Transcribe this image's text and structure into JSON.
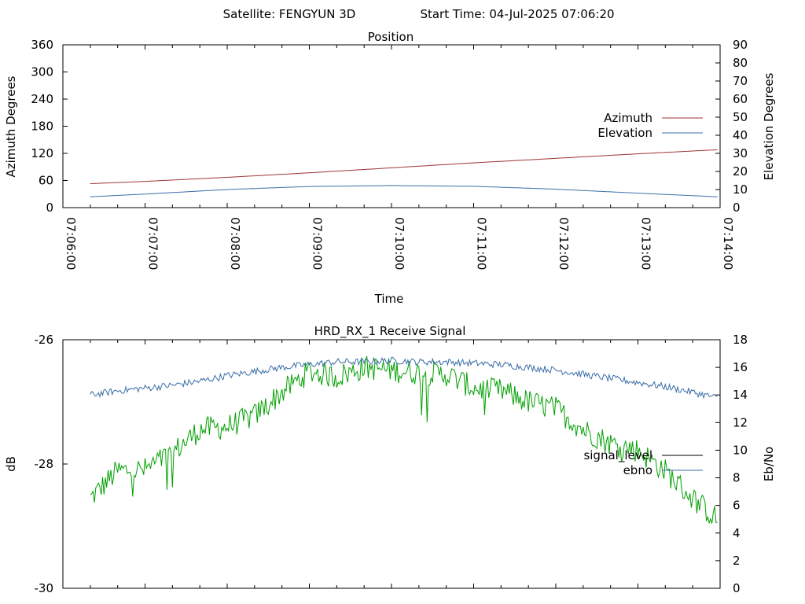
{
  "header": {
    "satellite": "Satellite: FENGYUN 3D",
    "start_time": "Start Time: 04-Jul-2025 07:06:20"
  },
  "chart_data": [
    {
      "type": "line",
      "title": "Position",
      "xlabel": "Time",
      "ylabel": "Azimuth Degrees",
      "y2label": "Elevation Degrees",
      "x_range": [
        "07:06:00",
        "07:14:00"
      ],
      "x_tick_labels": [
        "07:06:00",
        "07:07:00",
        "07:08:00",
        "07:09:00",
        "07:10:00",
        "07:11:00",
        "07:12:00",
        "07:13:00",
        "07:14:00"
      ],
      "ylim": [
        0,
        360
      ],
      "y_ticks": [
        0,
        60,
        120,
        180,
        240,
        300,
        360
      ],
      "y2lim": [
        0,
        90
      ],
      "y2_ticks": [
        0,
        10,
        20,
        30,
        40,
        50,
        60,
        70,
        80,
        90
      ],
      "legend_position": "right",
      "series": [
        {
          "name": "Azimuth",
          "axis": "y1",
          "color": "#a03232",
          "x": [
            "07:06:20",
            "07:07:00",
            "07:08:00",
            "07:09:00",
            "07:10:00",
            "07:11:00",
            "07:12:00",
            "07:13:00",
            "07:13:58"
          ],
          "values": [
            53,
            58,
            67,
            77,
            88,
            99,
            109,
            119,
            128
          ]
        },
        {
          "name": "Elevation",
          "axis": "y2",
          "color": "#3a6da8",
          "x": [
            "07:06:20",
            "07:07:00",
            "07:08:00",
            "07:09:00",
            "07:10:00",
            "07:11:00",
            "07:12:00",
            "07:13:00",
            "07:13:58"
          ],
          "values": [
            6,
            7.5,
            10,
            11.7,
            12.2,
            11.8,
            10.2,
            8,
            6
          ]
        }
      ]
    },
    {
      "type": "line",
      "title": "HRD_RX_1 Receive Signal",
      "ylabel": "dB",
      "y2label": "Eb/No",
      "x_range": [
        "07:06:00",
        "07:14:00"
      ],
      "ylim": [
        -30,
        -26
      ],
      "y_ticks": [
        -30,
        -28,
        -26
      ],
      "y2lim": [
        0,
        18
      ],
      "y2_ticks": [
        0,
        2,
        4,
        6,
        8,
        10,
        12,
        14,
        16,
        18
      ],
      "legend_position": "right",
      "series": [
        {
          "name": "signal_level",
          "axis": "y2",
          "color": "#00a000",
          "legend_color": "#000000",
          "x": [
            "07:06:20",
            "07:06:40",
            "07:07:00",
            "07:07:20",
            "07:07:40",
            "07:08:00",
            "07:08:20",
            "07:08:40",
            "07:09:00",
            "07:09:20",
            "07:09:40",
            "07:10:00",
            "07:10:20",
            "07:10:40",
            "07:11:00",
            "07:11:20",
            "07:11:40",
            "07:12:00",
            "07:12:20",
            "07:12:40",
            "07:13:00",
            "07:13:20",
            "07:13:40",
            "07:13:58"
          ],
          "values": [
            6.5,
            8.5,
            8.6,
            9.8,
            11.5,
            11.7,
            12.5,
            14.2,
            15.7,
            15.3,
            16.0,
            15.8,
            15.6,
            15.5,
            14.5,
            14.3,
            13.5,
            13.0,
            11.5,
            10.5,
            10.0,
            8.5,
            6.5,
            5.0
          ]
        },
        {
          "name": "ebno",
          "axis": "y2",
          "color": "#3a6da8",
          "x": [
            "07:06:20",
            "07:06:40",
            "07:07:00",
            "07:07:20",
            "07:07:40",
            "07:08:00",
            "07:08:20",
            "07:08:40",
            "07:09:00",
            "07:09:20",
            "07:09:40",
            "07:10:00",
            "07:10:20",
            "07:10:40",
            "07:11:00",
            "07:11:20",
            "07:11:40",
            "07:12:00",
            "07:12:20",
            "07:12:40",
            "07:13:00",
            "07:13:20",
            "07:13:40",
            "07:13:58"
          ],
          "values": [
            14.0,
            14.3,
            14.5,
            14.7,
            15.0,
            15.4,
            15.7,
            16.0,
            16.2,
            16.4,
            16.4,
            16.5,
            16.4,
            16.4,
            16.3,
            16.2,
            16.0,
            15.8,
            15.5,
            15.2,
            14.9,
            14.6,
            14.2,
            13.8
          ]
        }
      ]
    }
  ]
}
